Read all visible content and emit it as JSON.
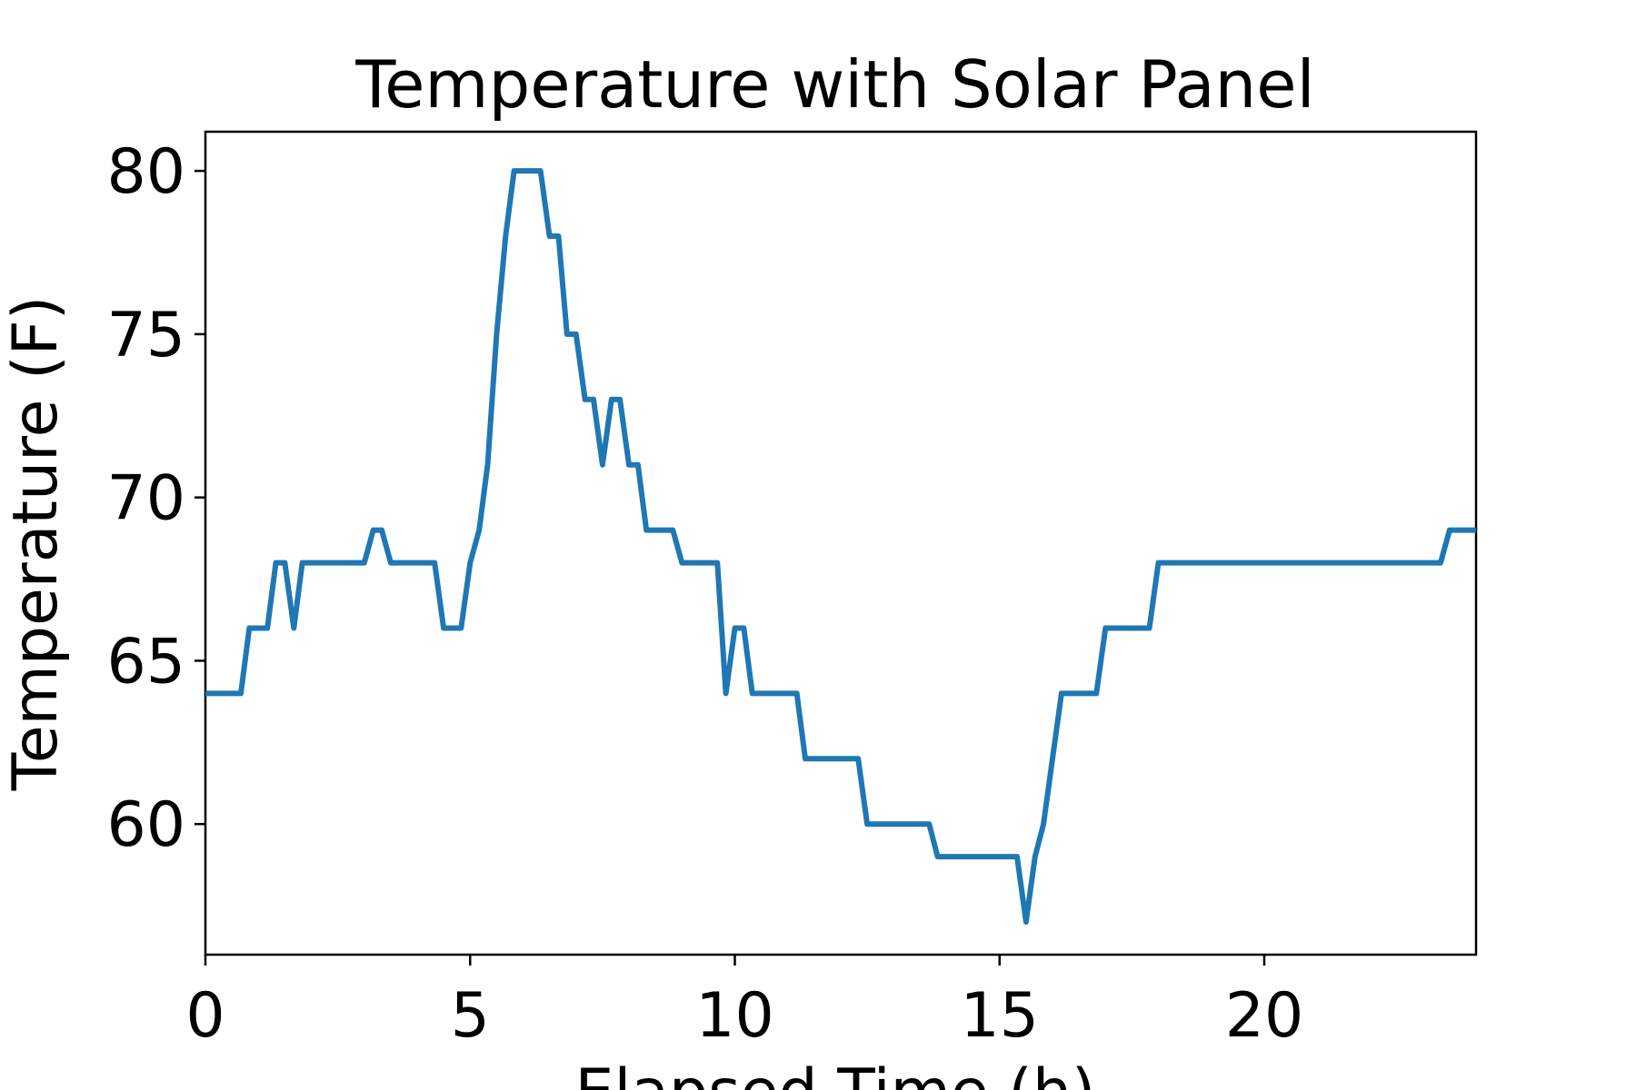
{
  "chart_data": {
    "type": "line",
    "title": "Temperature with Solar Panel",
    "xlabel": "Elapsed Time (h)",
    "ylabel": "Temperature (F)",
    "xlim": [
      0,
      24
    ],
    "ylim": [
      56,
      81.2
    ],
    "xticks": [
      0,
      5,
      10,
      15,
      20
    ],
    "yticks": [
      60,
      65,
      70,
      75,
      80
    ],
    "grid": false,
    "legend": "none",
    "series": [
      {
        "color": "#1f77b4",
        "x": [
          0,
          0.67,
          0.83,
          1.17,
          1.33,
          1.5,
          1.67,
          1.83,
          3.0,
          3.17,
          3.33,
          3.5,
          4.33,
          4.5,
          4.83,
          5.0,
          5.17,
          5.33,
          5.5,
          5.67,
          5.83,
          6.0,
          6.33,
          6.5,
          6.67,
          6.83,
          7.0,
          7.17,
          7.33,
          7.5,
          7.67,
          7.83,
          8.0,
          8.17,
          8.33,
          8.83,
          9.0,
          9.17,
          9.67,
          9.83,
          10.0,
          10.17,
          10.33,
          11.17,
          11.33,
          12.33,
          12.5,
          13.67,
          13.83,
          15.33,
          15.5,
          15.67,
          15.83,
          16.17,
          16.33,
          16.83,
          17.0,
          17.83,
          18.0,
          23.33,
          23.5,
          24.0
        ],
        "values": [
          64,
          64,
          66,
          66,
          68,
          68,
          66,
          68,
          68,
          69,
          69,
          68,
          68,
          66,
          66,
          68,
          69,
          71,
          75,
          78,
          80,
          80,
          80,
          78,
          78,
          75,
          75,
          73,
          73,
          71,
          73,
          73,
          71,
          71,
          69,
          69,
          68,
          68,
          68,
          64,
          66,
          66,
          64,
          64,
          62,
          62,
          60,
          60,
          59,
          59,
          57,
          59,
          60,
          64,
          64,
          64,
          66,
          66,
          68,
          68,
          69,
          69
        ]
      }
    ]
  }
}
